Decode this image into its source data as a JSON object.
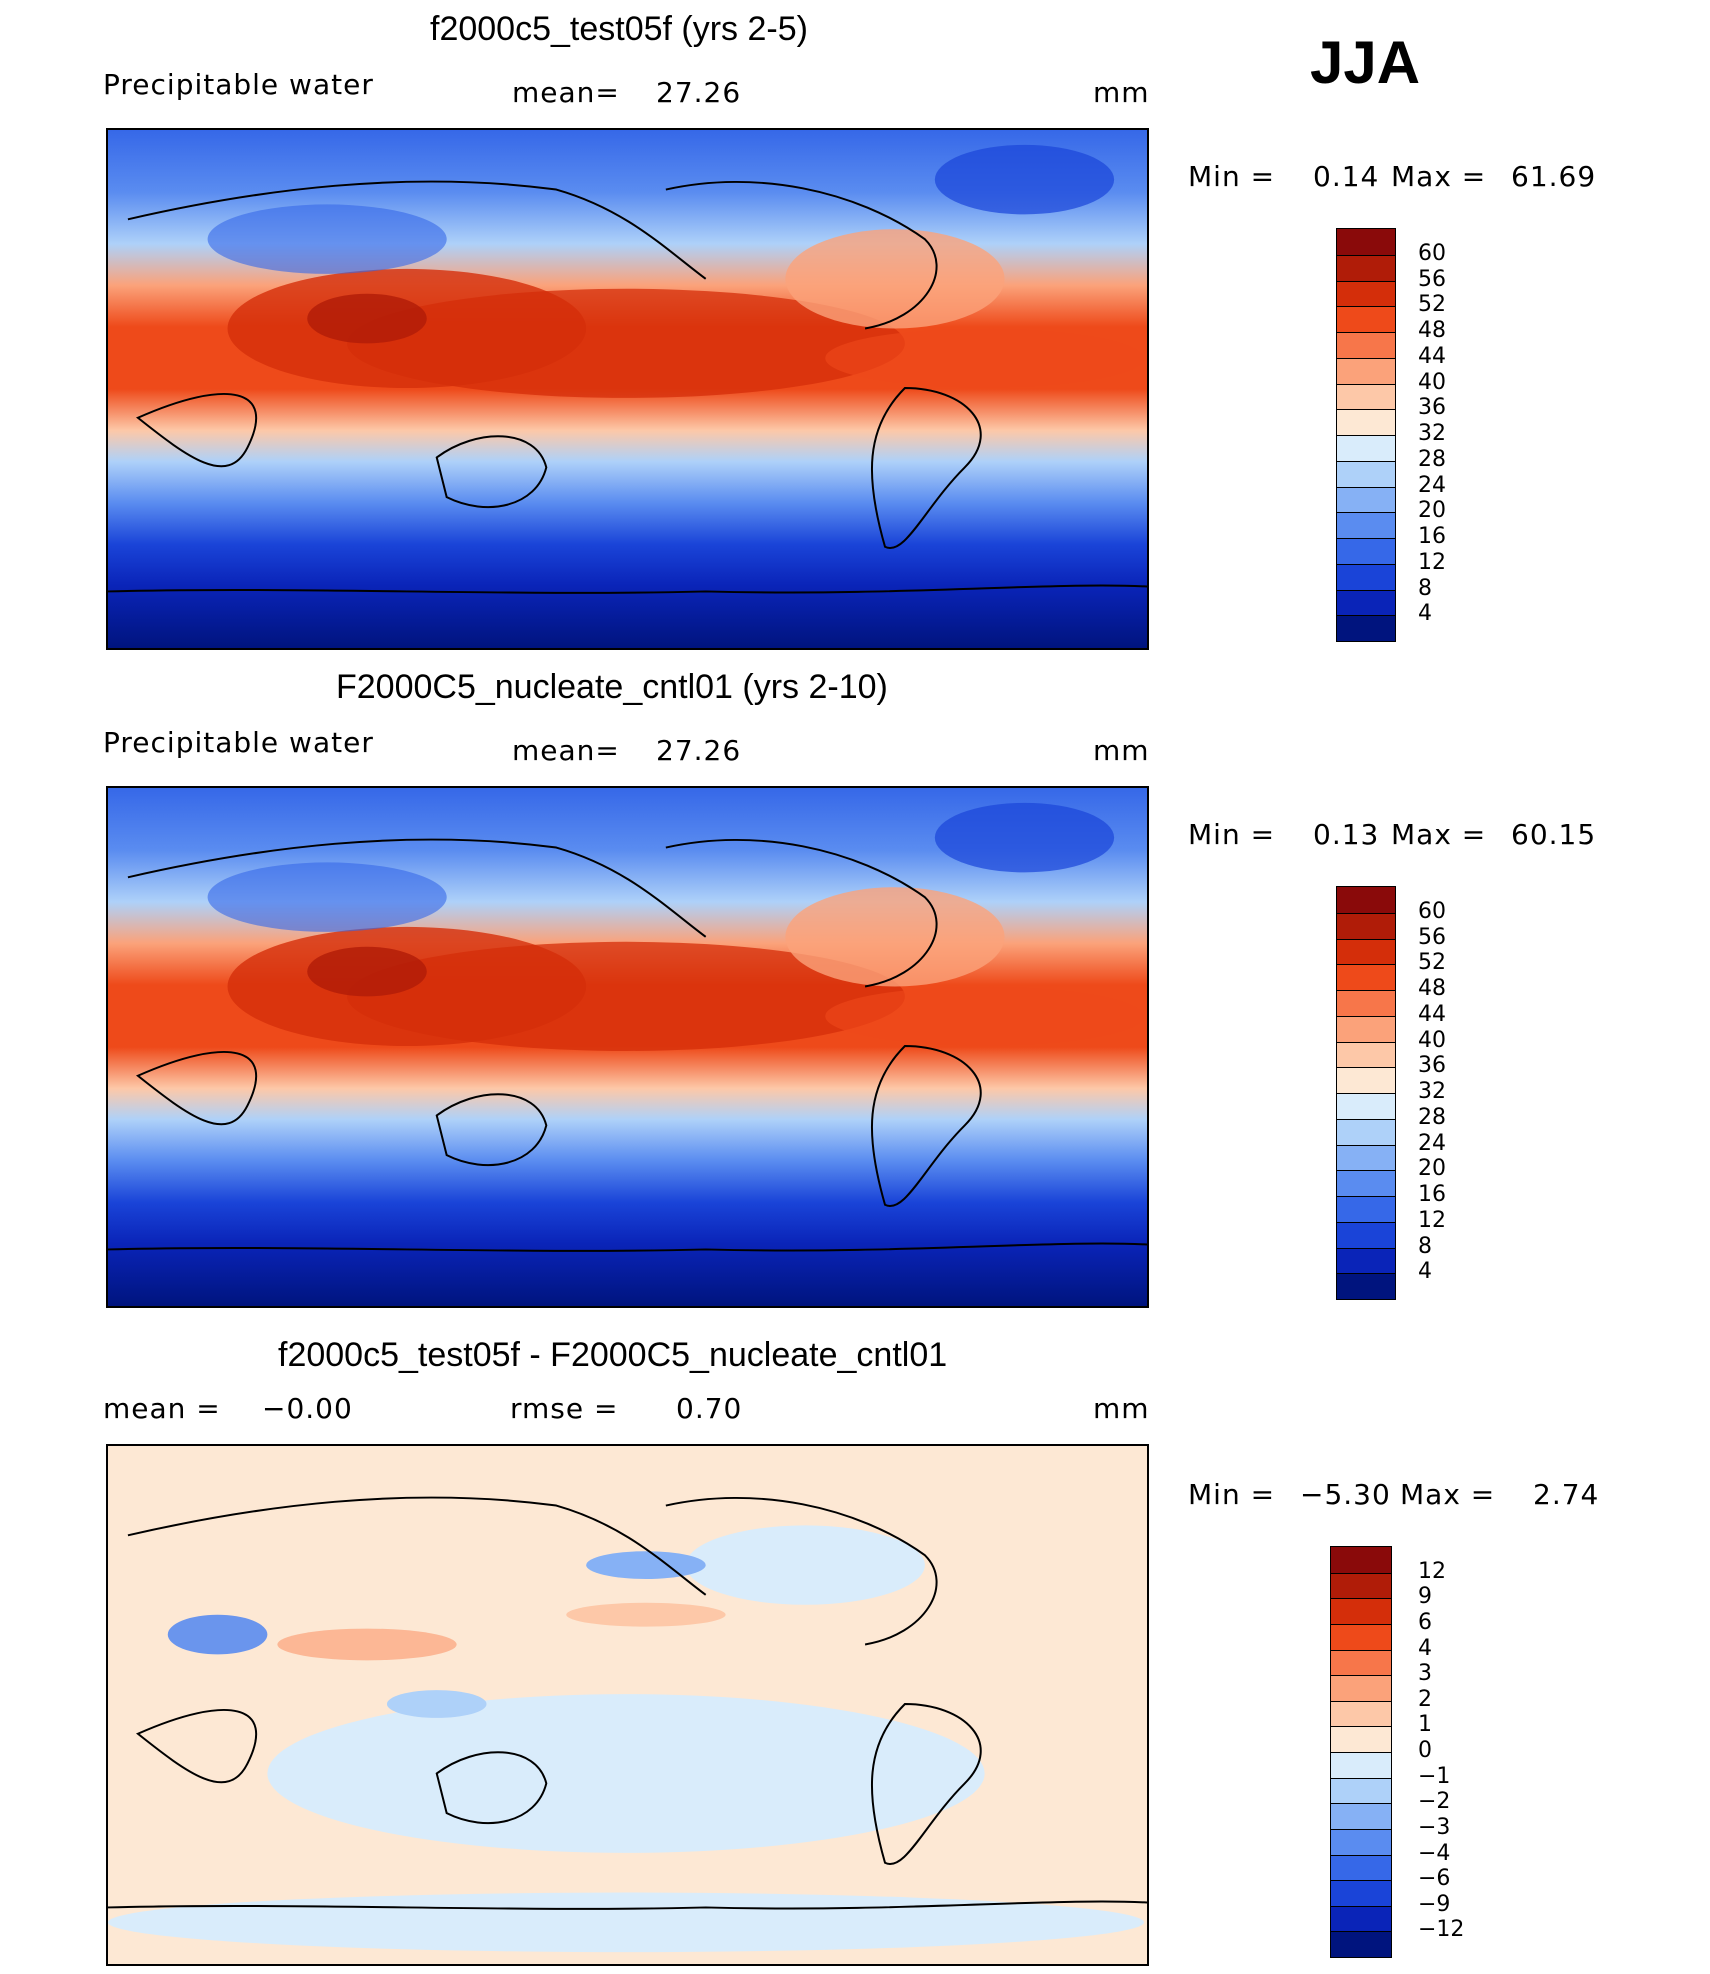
{
  "season": "JJA",
  "panels": [
    {
      "title": "f2000c5_test05f (yrs 2-5)",
      "variable": "Precipitable water",
      "stat_label": "mean=",
      "stat_value": "27.26",
      "units": "mm",
      "min_label": "Min =",
      "min_value": "0.14",
      "max_label": "Max =",
      "max_value": "61.69"
    },
    {
      "title": "F2000C5_nucleate_cntl01 (yrs 2-10)",
      "variable": "Precipitable water",
      "stat_label": "mean=",
      "stat_value": "27.26",
      "units": "mm",
      "min_label": "Min =",
      "min_value": "0.13",
      "max_label": "Max =",
      "max_value": "60.15"
    },
    {
      "title": "f2000c5_test05f - F2000C5_nucleate_cntl01",
      "stat_label": "mean =",
      "stat_value": "−0.00",
      "stat2_label": "rmse =",
      "stat2_value": "0.70",
      "units": "mm",
      "min_label": "Min =",
      "min_value": "−5.30",
      "max_label": "Max =",
      "max_value": "2.74"
    }
  ],
  "colorbar_abs": {
    "ticks": [
      "60",
      "56",
      "52",
      "48",
      "44",
      "40",
      "36",
      "32",
      "28",
      "24",
      "20",
      "16",
      "12",
      "8",
      "4"
    ],
    "colors": [
      "#8a0a0a",
      "#b01c08",
      "#d42e0a",
      "#ee4a1a",
      "#f7764a",
      "#fba27a",
      "#fdc8a8",
      "#fde8d4",
      "#d9ecfb",
      "#aed1f9",
      "#86b1f5",
      "#5a8cf0",
      "#3668e8",
      "#1a44d8",
      "#0a24b8",
      "#00147e"
    ]
  },
  "colorbar_diff": {
    "ticks": [
      "12",
      "9",
      "6",
      "4",
      "3",
      "2",
      "1",
      "0",
      "−1",
      "−2",
      "−3",
      "−4",
      "−6",
      "−9",
      "−12"
    ],
    "colors": [
      "#8a0a0a",
      "#b01c08",
      "#d42e0a",
      "#ee4a1a",
      "#f7764a",
      "#fba27a",
      "#fdc8a8",
      "#fde8d4",
      "#d9ecfb",
      "#aed1f9",
      "#86b1f5",
      "#5a8cf0",
      "#3668e8",
      "#1a44d8",
      "#0a24b8",
      "#00147e"
    ]
  }
}
